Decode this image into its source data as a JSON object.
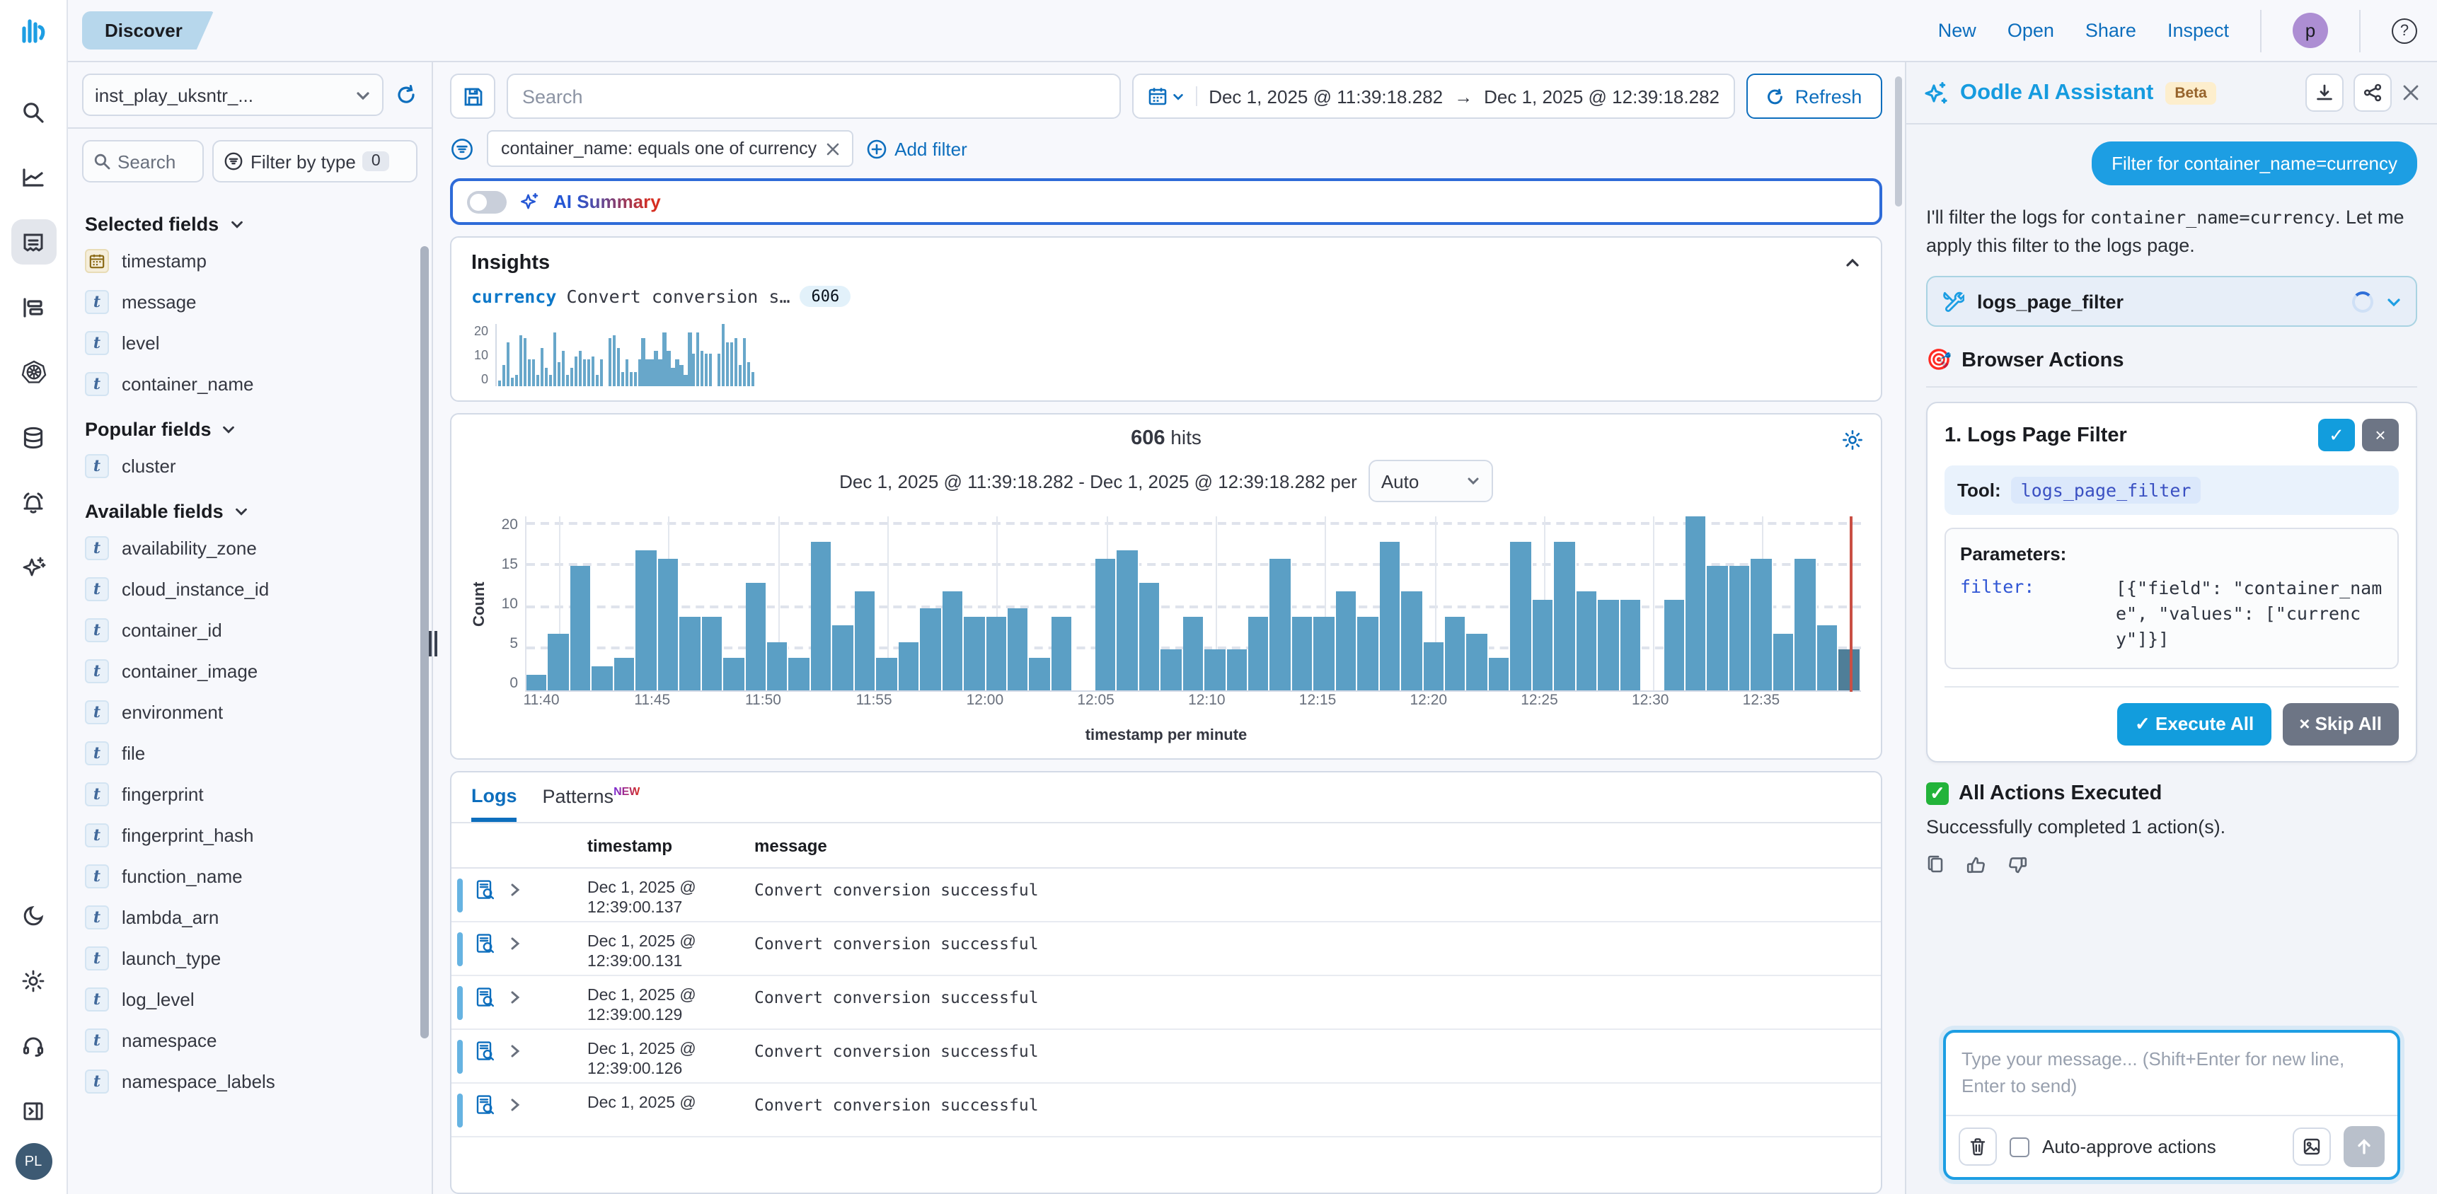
{
  "colors": {
    "accent_blue": "#0d6ebd",
    "oodle_blue": "#1d9ee3",
    "bar_blue": "#5b9fc5",
    "bar_muted": "#4f7e98",
    "red_marker": "#c94f44",
    "ai_gradient_start": "#2456d4",
    "ai_gradient_end": "#d62d20"
  },
  "left_rail": {
    "items": [
      "oodle-logo",
      "search",
      "metrics",
      "logs",
      "traces",
      "kubernetes",
      "database",
      "alerts",
      "ai-sparkle"
    ],
    "active": "logs",
    "bottom_items": [
      "dark-mode",
      "settings",
      "support",
      "expand-panel"
    ],
    "avatar_text": "PL"
  },
  "topbar": {
    "app_tab": "Discover",
    "menu": [
      "New",
      "Open",
      "Share",
      "Inspect"
    ],
    "avatar": "p"
  },
  "sidebar": {
    "index_pattern": "inst_play_uksntr_...",
    "field_search_placeholder": "Search",
    "filter_by_type_label": "Filter by type",
    "filter_by_type_count": "0",
    "sections": [
      {
        "label": "Selected fields",
        "fields": [
          {
            "type": "date",
            "name": "timestamp"
          },
          {
            "type": "text",
            "name": "message"
          },
          {
            "type": "text",
            "name": "level"
          },
          {
            "type": "text",
            "name": "container_name"
          }
        ]
      },
      {
        "label": "Popular fields",
        "fields": [
          {
            "type": "text",
            "name": "cluster"
          }
        ]
      },
      {
        "label": "Available fields",
        "fields": [
          {
            "type": "text",
            "name": "availability_zone"
          },
          {
            "type": "text",
            "name": "cloud_instance_id"
          },
          {
            "type": "text",
            "name": "container_id"
          },
          {
            "type": "text",
            "name": "container_image"
          },
          {
            "type": "text",
            "name": "environment"
          },
          {
            "type": "text",
            "name": "file"
          },
          {
            "type": "text",
            "name": "fingerprint"
          },
          {
            "type": "text",
            "name": "fingerprint_hash"
          },
          {
            "type": "text",
            "name": "function_name"
          },
          {
            "type": "text",
            "name": "lambda_arn"
          },
          {
            "type": "text",
            "name": "launch_type"
          },
          {
            "type": "text",
            "name": "log_level"
          },
          {
            "type": "text",
            "name": "namespace"
          },
          {
            "type": "text",
            "name": "namespace_labels"
          }
        ]
      }
    ]
  },
  "querybar": {
    "search_placeholder": "Search",
    "date_from": "Dec 1, 2025 @ 11:39:18.282",
    "arrow": "→",
    "date_to": "Dec 1, 2025 @ 12:39:18.282",
    "refresh_label": "Refresh",
    "filter_pill": "container_name: equals one of currency",
    "add_filter_label": "Add filter"
  },
  "ai_summary": {
    "label": "AI Summary"
  },
  "insights": {
    "title": "Insights",
    "tag": "currency",
    "text": "Convert conversion s…",
    "badge": "606"
  },
  "histogram": {
    "hits_value": "606",
    "hits_label": "hits",
    "subtitle": "Dec 1, 2025 @ 11:39:18.282 - Dec 1, 2025 @ 12:39:18.282 per",
    "interval": "Auto",
    "ylabel": "Count",
    "xlabel": "timestamp per minute"
  },
  "tabs": {
    "logs": "Logs",
    "patterns": "Patterns",
    "new_badge": "NEW"
  },
  "table": {
    "columns": [
      "timestamp",
      "message"
    ],
    "rows": [
      {
        "ts_line1": "Dec 1, 2025 @",
        "ts_line2": "12:39:00.137",
        "message": "Convert conversion successful"
      },
      {
        "ts_line1": "Dec 1, 2025 @",
        "ts_line2": "12:39:00.131",
        "message": "Convert conversion successful"
      },
      {
        "ts_line1": "Dec 1, 2025 @",
        "ts_line2": "12:39:00.129",
        "message": "Convert conversion successful"
      },
      {
        "ts_line1": "Dec 1, 2025 @",
        "ts_line2": "12:39:00.126",
        "message": "Convert conversion successful"
      },
      {
        "ts_line1": "Dec 1, 2025 @",
        "ts_line2": "",
        "message": "Convert conversion successful"
      }
    ]
  },
  "assistant": {
    "title": "Oodle AI Assistant",
    "beta": "Beta",
    "user_message": "Filter for container_name=currency",
    "reply_prefix": "I'll filter the logs for ",
    "reply_code": "container_name=currency",
    "reply_suffix": ". Let me apply this filter to the logs page.",
    "tool_chip": "logs_page_filter",
    "browser_actions_title": "Browser Actions",
    "browser_actions_emoji": "🎯",
    "action_card": {
      "title": "1. Logs Page Filter",
      "approve_glyph": "✓",
      "reject_glyph": "×",
      "tool_label": "Tool:",
      "tool_name": "logs_page_filter",
      "params_label": "Parameters:",
      "param_key": "filter:",
      "param_value": "[{\"field\": \"container_name\", \"values\": [\"currency\"]}]",
      "execute_all": "✓ Execute All",
      "skip_all": "× Skip All"
    },
    "status_title": "All Actions Executed",
    "status_emoji": "✅",
    "status_text": "Successfully completed 1 action(s).",
    "input_placeholder": "Type your message... (Shift+Enter for new line, Enter to send)",
    "auto_approve_label": "Auto-approve actions"
  },
  "chart_data": [
    {
      "id": "insights-sparkline",
      "type": "bar",
      "title": "currency — Convert conversion s… (606)",
      "x": [
        "11:39",
        "11:40",
        "11:41",
        "11:42",
        "11:43",
        "11:44",
        "11:45",
        "11:46",
        "11:47",
        "11:48",
        "11:49",
        "11:50",
        "11:51",
        "11:52",
        "11:53",
        "11:54",
        "11:55",
        "11:56",
        "11:57",
        "11:58",
        "11:59",
        "12:00",
        "12:01",
        "12:02",
        "12:03",
        "12:04",
        "12:05",
        "12:06",
        "12:07",
        "12:08",
        "12:09",
        "12:10",
        "12:11",
        "12:12",
        "12:13",
        "12:14",
        "12:15",
        "12:16",
        "12:17",
        "12:18",
        "12:19",
        "12:20",
        "12:21",
        "12:22",
        "12:23",
        "12:24",
        "12:25",
        "12:26",
        "12:27",
        "12:28",
        "12:29",
        "12:30",
        "12:31",
        "12:32",
        "12:33",
        "12:34",
        "12:35",
        "12:36",
        "12:37",
        "12:38",
        "12:39"
      ],
      "values": [
        2,
        7,
        15,
        3,
        4,
        17,
        16,
        9,
        9,
        4,
        13,
        6,
        4,
        18,
        8,
        12,
        4,
        6,
        10,
        12,
        9,
        9,
        10,
        4,
        9,
        0,
        16,
        17,
        13,
        5,
        9,
        5,
        5,
        9,
        16,
        9,
        9,
        12,
        9,
        18,
        12,
        6,
        9,
        7,
        4,
        18,
        11,
        18,
        12,
        11,
        11,
        0,
        11,
        21,
        15,
        15,
        16,
        7,
        16,
        8,
        5
      ],
      "ylim": [
        0,
        21
      ],
      "yticks": [
        0,
        10,
        20
      ],
      "grid": false,
      "legend": "none"
    },
    {
      "id": "main-histogram",
      "type": "bar",
      "title": "606 hits",
      "xlabel": "timestamp per minute",
      "ylabel": "Count",
      "x": [
        "11:39",
        "11:40",
        "11:41",
        "11:42",
        "11:43",
        "11:44",
        "11:45",
        "11:46",
        "11:47",
        "11:48",
        "11:49",
        "11:50",
        "11:51",
        "11:52",
        "11:53",
        "11:54",
        "11:55",
        "11:56",
        "11:57",
        "11:58",
        "11:59",
        "12:00",
        "12:01",
        "12:02",
        "12:03",
        "12:04",
        "12:05",
        "12:06",
        "12:07",
        "12:08",
        "12:09",
        "12:10",
        "12:11",
        "12:12",
        "12:13",
        "12:14",
        "12:15",
        "12:16",
        "12:17",
        "12:18",
        "12:19",
        "12:20",
        "12:21",
        "12:22",
        "12:23",
        "12:24",
        "12:25",
        "12:26",
        "12:27",
        "12:28",
        "12:29",
        "12:30",
        "12:31",
        "12:32",
        "12:33",
        "12:34",
        "12:35",
        "12:36",
        "12:37",
        "12:38",
        "12:39"
      ],
      "values": [
        2,
        7,
        15,
        3,
        4,
        17,
        16,
        9,
        9,
        4,
        13,
        6,
        4,
        18,
        8,
        12,
        4,
        6,
        10,
        12,
        9,
        9,
        10,
        4,
        9,
        0,
        16,
        17,
        13,
        5,
        9,
        5,
        5,
        9,
        16,
        9,
        9,
        12,
        9,
        18,
        12,
        6,
        9,
        7,
        4,
        18,
        11,
        18,
        12,
        11,
        11,
        0,
        11,
        21,
        15,
        15,
        16,
        7,
        16,
        8,
        5
      ],
      "ylim": [
        0,
        21
      ],
      "yticks": [
        0,
        5,
        10,
        15,
        20
      ],
      "x_tick_labels": [
        "11:40",
        "11:45",
        "11:50",
        "11:55",
        "12:00",
        "12:05",
        "12:10",
        "12:15",
        "12:20",
        "12:25",
        "12:30",
        "12:35"
      ],
      "grid": true,
      "legend": "none",
      "annotations": [
        "red current-time marker at right edge",
        "last bar muted color"
      ]
    }
  ]
}
